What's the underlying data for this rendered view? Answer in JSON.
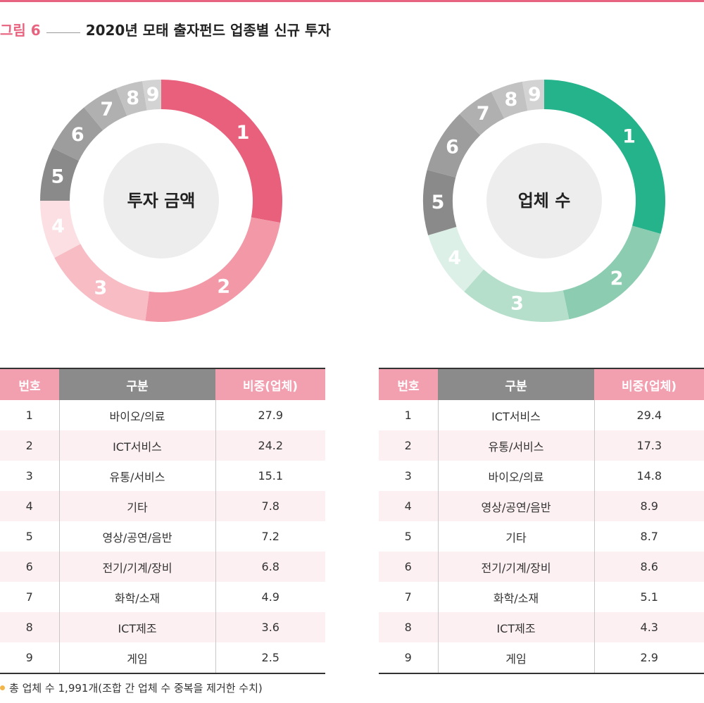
{
  "figure": {
    "label": "그림 6",
    "title": "2020년 모태 출자펀드 업종별 신규 투자"
  },
  "chart_data": [
    {
      "type": "pie",
      "title": "투자 금액",
      "categories": [
        "1",
        "2",
        "3",
        "4",
        "5",
        "6",
        "7",
        "8",
        "9"
      ],
      "values": [
        27.9,
        24.2,
        15.1,
        7.8,
        7.2,
        6.8,
        4.9,
        3.6,
        2.5
      ],
      "colors": [
        "#e9607c",
        "#f398a6",
        "#f7bcc4",
        "#fbdfe2",
        "#8a8a8a",
        "#9d9d9d",
        "#b0b0b0",
        "#c2c2c2",
        "#d3d3d3"
      ]
    },
    {
      "type": "pie",
      "title": "업체 수",
      "categories": [
        "1",
        "2",
        "3",
        "4",
        "5",
        "6",
        "7",
        "8",
        "9"
      ],
      "values": [
        29.4,
        17.3,
        14.8,
        8.9,
        8.7,
        8.6,
        5.1,
        4.3,
        2.9
      ],
      "colors": [
        "#24b38b",
        "#8ccdb2",
        "#b5dfcb",
        "#dcf0e8",
        "#8a8a8a",
        "#9d9d9d",
        "#b0b0b0",
        "#c2c2c2",
        "#d3d3d3"
      ]
    }
  ],
  "tables": [
    {
      "headers": [
        "번호",
        "구분",
        "비중(업체)"
      ],
      "rows": [
        [
          "1",
          "바이오/의료",
          "27.9"
        ],
        [
          "2",
          "ICT서비스",
          "24.2"
        ],
        [
          "3",
          "유통/서비스",
          "15.1"
        ],
        [
          "4",
          "기타",
          "7.8"
        ],
        [
          "5",
          "영상/공연/음반",
          "7.2"
        ],
        [
          "6",
          "전기/기계/장비",
          "6.8"
        ],
        [
          "7",
          "화학/소재",
          "4.9"
        ],
        [
          "8",
          "ICT제조",
          "3.6"
        ],
        [
          "9",
          "게임",
          "2.5"
        ]
      ]
    },
    {
      "headers": [
        "번호",
        "구분",
        "비중(업체)"
      ],
      "rows": [
        [
          "1",
          "ICT서비스",
          "29.4"
        ],
        [
          "2",
          "유통/서비스",
          "17.3"
        ],
        [
          "3",
          "바이오/의료",
          "14.8"
        ],
        [
          "4",
          "영상/공연/음반",
          "8.9"
        ],
        [
          "5",
          "기타",
          "8.7"
        ],
        [
          "6",
          "전기/기계/장비",
          "8.6"
        ],
        [
          "7",
          "화학/소재",
          "5.1"
        ],
        [
          "8",
          "ICT제조",
          "4.3"
        ],
        [
          "9",
          "게임",
          "2.9"
        ]
      ]
    }
  ],
  "note": "총 업체 수 1,991개(조합 간 업체 수 중복을 제거한 수치)"
}
